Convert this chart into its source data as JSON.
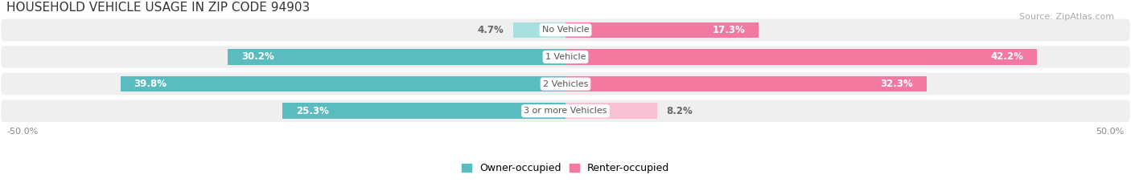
{
  "title": "HOUSEHOLD VEHICLE USAGE IN ZIP CODE 94903",
  "source": "Source: ZipAtlas.com",
  "categories": [
    "No Vehicle",
    "1 Vehicle",
    "2 Vehicles",
    "3 or more Vehicles"
  ],
  "owner_values": [
    4.7,
    30.2,
    39.8,
    25.3
  ],
  "renter_values": [
    17.3,
    42.2,
    32.3,
    8.2
  ],
  "owner_color": "#5bbcbf",
  "renter_color": "#f279a0",
  "owner_light_color": "#a8dfe1",
  "renter_light_color": "#f9c2d4",
  "row_bg_color": "#efefef",
  "background_color": "#ffffff",
  "title_fontsize": 11,
  "source_fontsize": 8,
  "label_fontsize": 8.5,
  "category_fontsize": 8,
  "axis_label_fontsize": 8,
  "legend_fontsize": 9,
  "xlim": 50.0,
  "legend_labels": [
    "Owner-occupied",
    "Renter-occupied"
  ],
  "small_threshold": 15
}
